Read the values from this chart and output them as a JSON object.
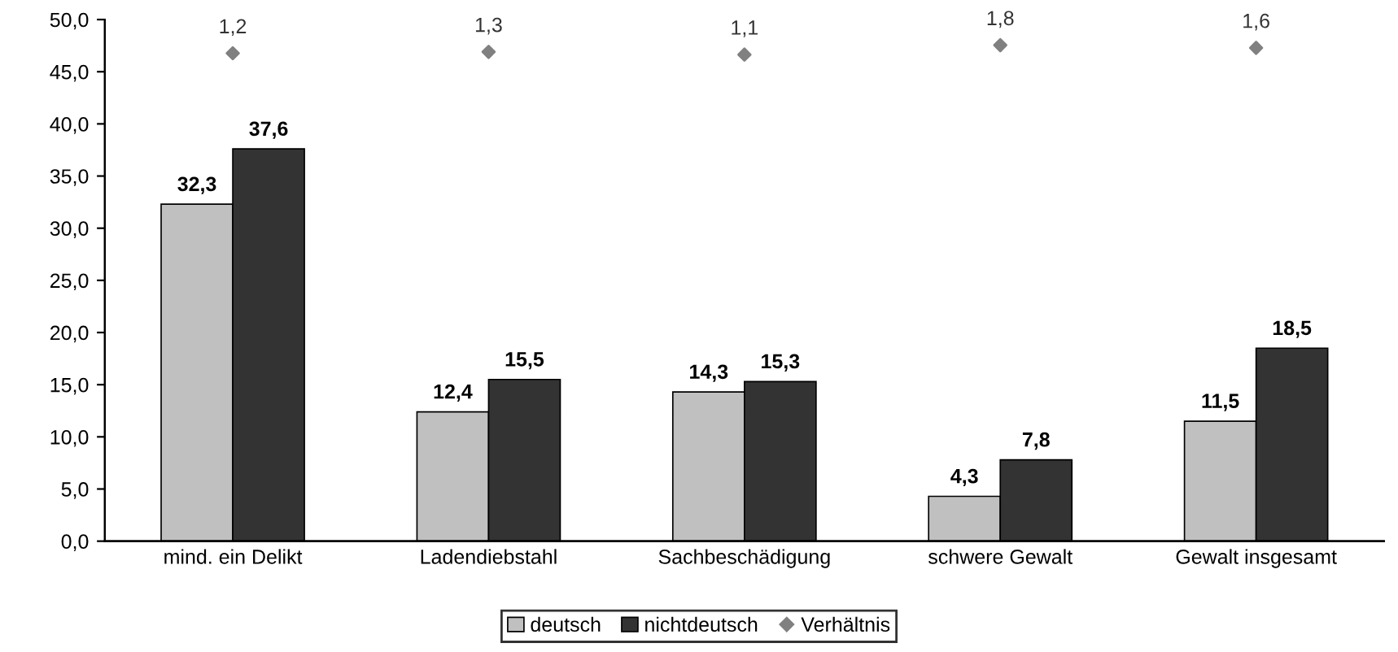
{
  "chart_data": {
    "type": "bar",
    "categories": [
      "mind. ein Delikt",
      "Ladendiebstahl",
      "Sachbeschädigung",
      "schwere Gewalt",
      "Gewalt insgesamt"
    ],
    "series": [
      {
        "name": "deutsch",
        "color": "#c0c0c0",
        "values": [
          32.3,
          12.4,
          14.3,
          4.3,
          11.5
        ],
        "value_labels": [
          "32,3",
          "12,4",
          "14,3",
          "4,3",
          "11,5"
        ]
      },
      {
        "name": "nichtdeutsch",
        "color": "#333333",
        "values": [
          37.6,
          15.5,
          15.3,
          7.8,
          18.5
        ],
        "value_labels": [
          "37,6",
          "15,5",
          "15,3",
          "7,8",
          "18,5"
        ]
      },
      {
        "name": "Verhältnis",
        "type": "scatter",
        "axis": "y2",
        "marker": "diamond",
        "color": "#808080",
        "values": [
          1.2,
          1.3,
          1.1,
          1.8,
          1.6
        ],
        "value_labels": [
          "1,2",
          "1,3",
          "1,1",
          "1,8",
          "1,6"
        ]
      }
    ],
    "ylim": [
      0,
      50
    ],
    "yticks": [
      {
        "value": 0,
        "label": "0,0"
      },
      {
        "value": 5,
        "label": "5,0"
      },
      {
        "value": 10,
        "label": "10,0"
      },
      {
        "value": 15,
        "label": "15,0"
      },
      {
        "value": 20,
        "label": "20,0"
      },
      {
        "value": 25,
        "label": "25,0"
      },
      {
        "value": 30,
        "label": "30,0"
      },
      {
        "value": 35,
        "label": "35,0"
      },
      {
        "value": 40,
        "label": "40,0"
      },
      {
        "value": 45,
        "label": "45,0"
      },
      {
        "value": 50,
        "label": "50,0"
      }
    ],
    "y2lim": [
      -35,
      3.7
    ],
    "tick_labels": "y",
    "grid": false,
    "legend": "bottom"
  }
}
